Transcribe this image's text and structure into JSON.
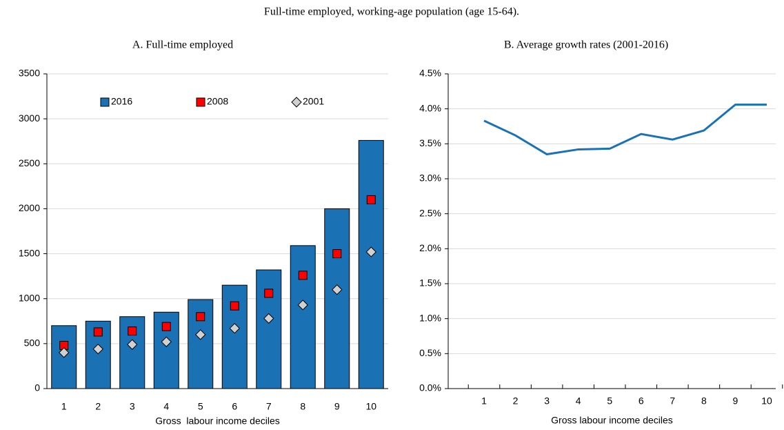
{
  "title": "Full-time employed, working-age population (age 15-64).",
  "chart_data": [
    {
      "type": "bar",
      "title": "A. Full-time employed",
      "x_label": "Gross  labour income deciles",
      "categories": [
        "1",
        "2",
        "3",
        "4",
        "5",
        "6",
        "7",
        "8",
        "9",
        "10"
      ],
      "series": [
        {
          "name": "2016",
          "type": "bar",
          "color": "#1a72b5",
          "values": [
            700,
            750,
            800,
            850,
            990,
            1150,
            1320,
            1590,
            2000,
            2760
          ]
        },
        {
          "name": "2008",
          "type": "marker",
          "marker": "square",
          "color": "#ff0000",
          "values": [
            480,
            630,
            640,
            690,
            800,
            920,
            1060,
            1260,
            1500,
            2100
          ]
        },
        {
          "name": "2001",
          "type": "marker",
          "marker": "diamond",
          "color": "#d0d0d0",
          "values": [
            400,
            440,
            490,
            520,
            600,
            670,
            780,
            930,
            1100,
            1520
          ]
        }
      ],
      "ylim": [
        0,
        3500
      ],
      "yticks": [
        0,
        500,
        1000,
        1500,
        2000,
        2500,
        3000,
        3500
      ],
      "grid": true,
      "legend": "top"
    },
    {
      "type": "line",
      "title": "B. Average growth rates (2001-2016)",
      "x_label": "Gross labour income deciles",
      "categories": [
        "1",
        "2",
        "3",
        "4",
        "5",
        "6",
        "7",
        "8",
        "9",
        "10"
      ],
      "values": [
        3.83,
        3.62,
        3.35,
        3.42,
        3.43,
        3.64,
        3.56,
        3.69,
        4.06,
        4.06
      ],
      "color": "#1a72b5",
      "ylim": [
        0,
        4.5
      ],
      "yticks": [
        {
          "value": 0,
          "label": "0.0%"
        },
        {
          "value": 0.5,
          "label": "0.5%"
        },
        {
          "value": 1,
          "label": "1.0%"
        },
        {
          "value": 1.5,
          "label": "1.5%"
        },
        {
          "value": 2,
          "label": "2.0%"
        },
        {
          "value": 2.5,
          "label": "2.5%"
        },
        {
          "value": 3,
          "label": "3.0%"
        },
        {
          "value": 3.5,
          "label": "3.5%"
        },
        {
          "value": 4,
          "label": "4.0%"
        },
        {
          "value": 4.5,
          "label": "4.5%"
        }
      ],
      "grid": true
    }
  ]
}
